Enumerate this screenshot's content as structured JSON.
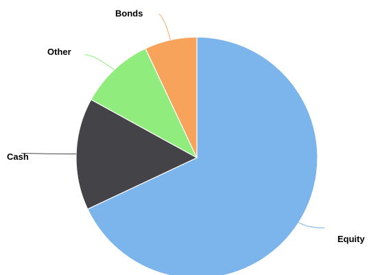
{
  "chart_data": {
    "type": "pie",
    "title": "",
    "legend": "none",
    "slices": [
      {
        "label": "Equity",
        "value": 68,
        "color": "#7cb5ec"
      },
      {
        "label": "Cash",
        "value": 15,
        "color": "#434348"
      },
      {
        "label": "Other",
        "value": 10,
        "color": "#90ed7d"
      },
      {
        "label": "Bonds",
        "value": 7,
        "color": "#f7a35c"
      }
    ]
  }
}
